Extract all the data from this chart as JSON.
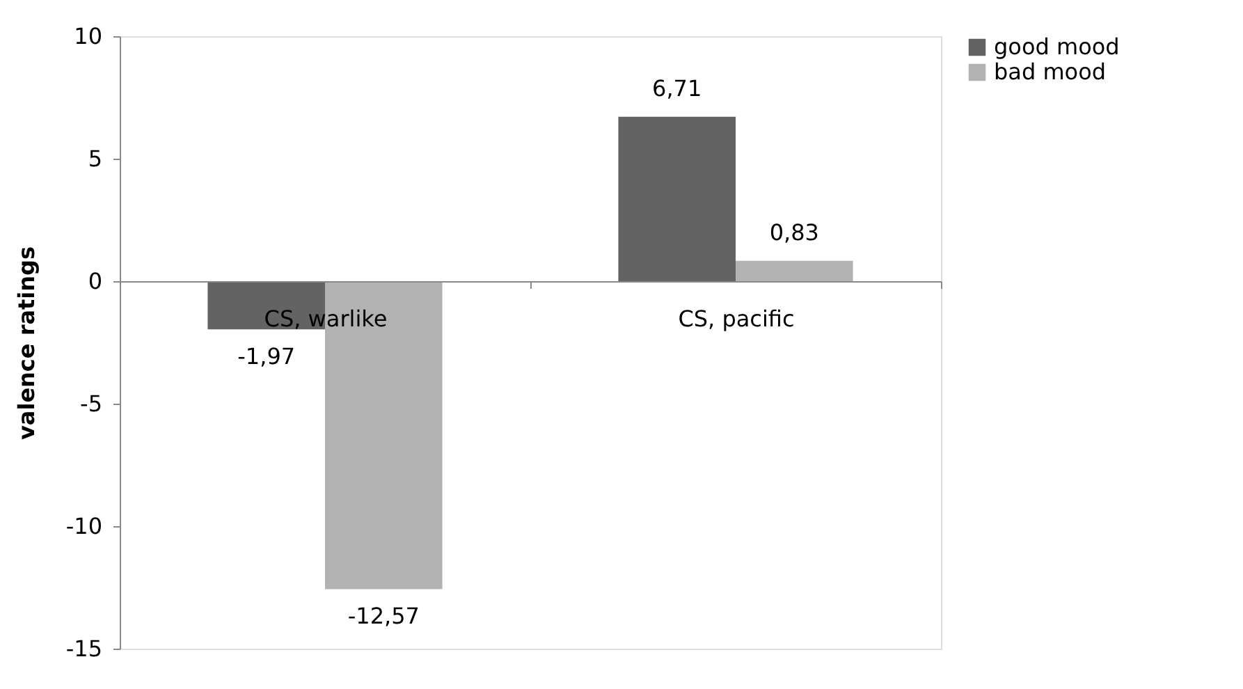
{
  "chart_data": {
    "type": "bar",
    "ylabel": "valence ratings",
    "categories": [
      "CS, warlike",
      "CS, pacific"
    ],
    "series": [
      {
        "name": "good mood",
        "color": "#636363",
        "values": [
          -1.97,
          6.71
        ],
        "value_labels": [
          "-1,97",
          "6,71"
        ]
      },
      {
        "name": "bad mood",
        "color": "#b2b2b2",
        "values": [
          -12.57,
          0.83
        ],
        "value_labels": [
          "-12,57",
          "0,83"
        ]
      }
    ],
    "ylim": [
      -15,
      10
    ],
    "yticks": [
      -15,
      -10,
      -5,
      0,
      5,
      10
    ],
    "grid": false,
    "legend": "right"
  }
}
